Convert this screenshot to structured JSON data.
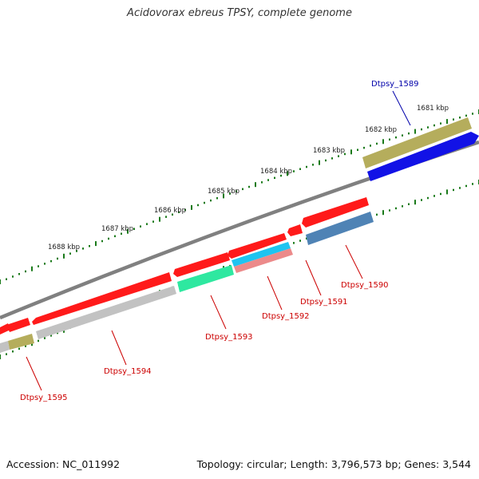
{
  "title": "Acidovorax ebreus TPSY, complete genome",
  "footer": {
    "accession": "Accession: NC_011992",
    "summary": "Topology: circular; Length: 3,796,573 bp; Genes: 3,544"
  },
  "colors": {
    "backbone": "#808080",
    "tick": "#1a7a1a",
    "gene_red": "#ff1a1a",
    "label_red": "#cc0000",
    "label_blue": "#0000aa",
    "olive": "#b5ad5c",
    "blue": "#1212e6",
    "steel_blue": "#4f83b5",
    "cyan": "#1ec4f0",
    "spring_green": "#2ee8a0",
    "salmon": "#ec8a8a",
    "grey": "#c2c2c2"
  },
  "scale": {
    "labels": [
      "1681 kbp",
      "1682 kbp",
      "1683 kbp",
      "1684 kbp",
      "1685 kbp",
      "1686 kbp",
      "1687 kbp",
      "1688 kbp"
    ]
  },
  "genes": [
    {
      "name": "Dtpsy_1589",
      "color": "label_blue"
    },
    {
      "name": "Dtpsy_1590",
      "color": "label_red"
    },
    {
      "name": "Dtpsy_1591",
      "color": "label_red"
    },
    {
      "name": "Dtpsy_1592",
      "color": "label_red"
    },
    {
      "name": "Dtpsy_1593",
      "color": "label_red"
    },
    {
      "name": "Dtpsy_1594",
      "color": "label_red"
    },
    {
      "name": "Dtpsy_1595",
      "color": "label_red"
    }
  ]
}
